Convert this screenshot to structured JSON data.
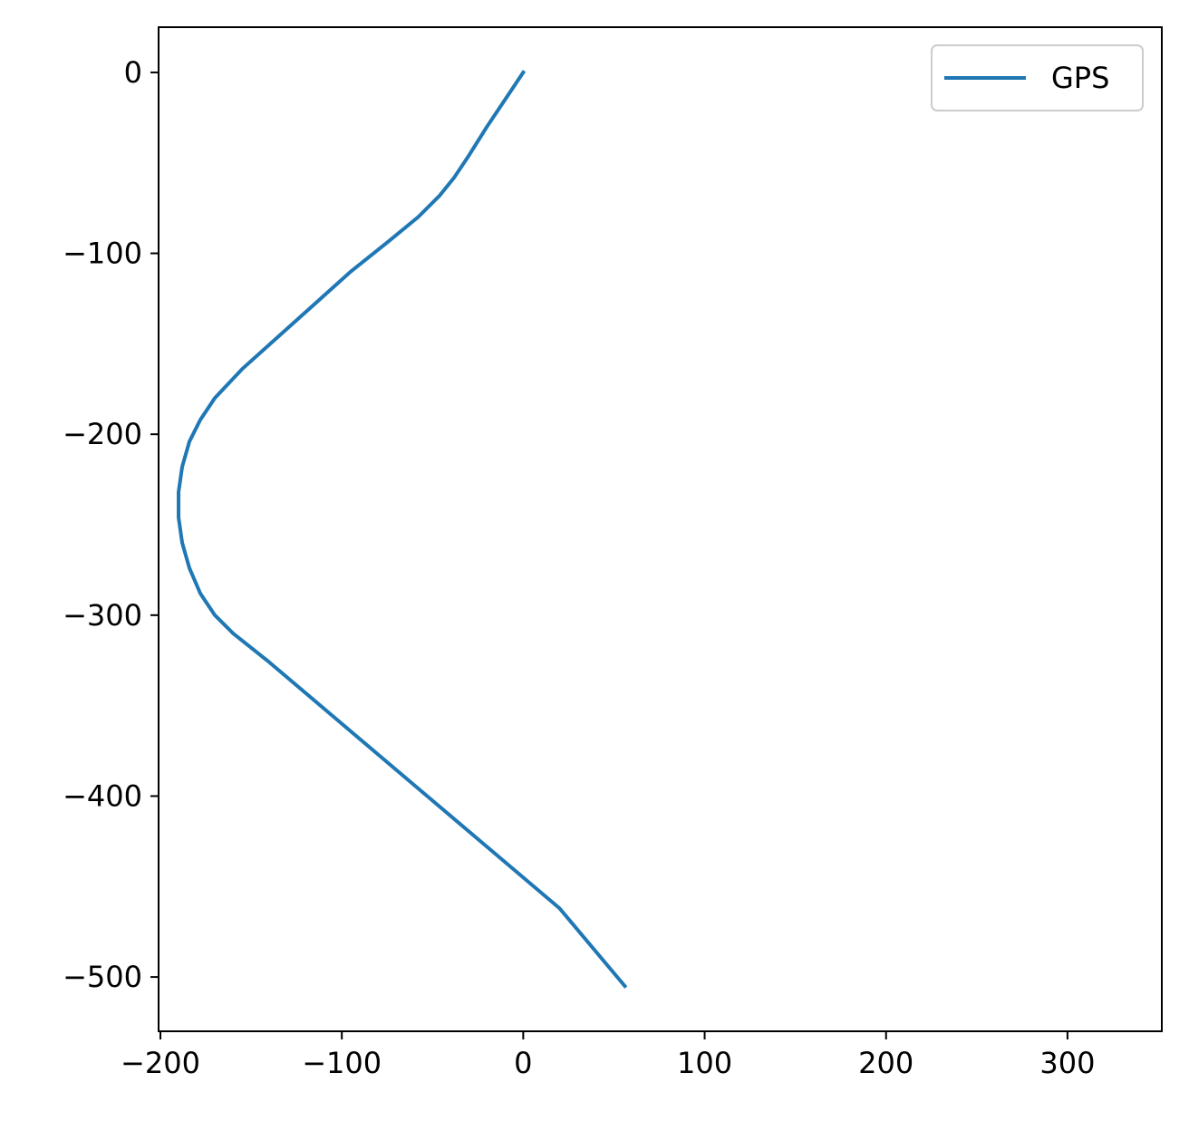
{
  "chart_data": {
    "type": "line",
    "title": "",
    "xlabel": "",
    "ylabel": "",
    "xlim": [
      -201,
      352
    ],
    "ylim": [
      -530,
      25
    ],
    "x_ticks": [
      -200,
      -100,
      0,
      100,
      200,
      300
    ],
    "y_ticks": [
      0,
      -100,
      -200,
      -300,
      -400,
      -500
    ],
    "x_tick_labels": [
      "−200",
      "−100",
      "0",
      "100",
      "200",
      "300"
    ],
    "y_tick_labels": [
      "0",
      "−100",
      "−200",
      "−300",
      "−400",
      "−500"
    ],
    "grid": false,
    "legend_position": "top-right",
    "series": [
      {
        "name": "GPS",
        "color": "#1f77b4",
        "x": [
          0,
          -10,
          -20,
          -30,
          -38,
          -46,
          -58,
          -75,
          -95,
          -115,
          -135,
          -155,
          -170,
          -178,
          -184,
          -188,
          -190,
          -190,
          -188,
          -184,
          -178,
          -170,
          -160,
          -140,
          -100,
          -60,
          -20,
          20,
          56
        ],
        "y": [
          0,
          -15,
          -30,
          -46,
          -58,
          -68,
          -80,
          -94,
          -110,
          -128,
          -146,
          -164,
          -180,
          -192,
          -204,
          -218,
          -232,
          -246,
          -260,
          -274,
          -288,
          -300,
          -310,
          -326,
          -360,
          -394,
          -428,
          -462,
          -505
        ]
      }
    ]
  }
}
